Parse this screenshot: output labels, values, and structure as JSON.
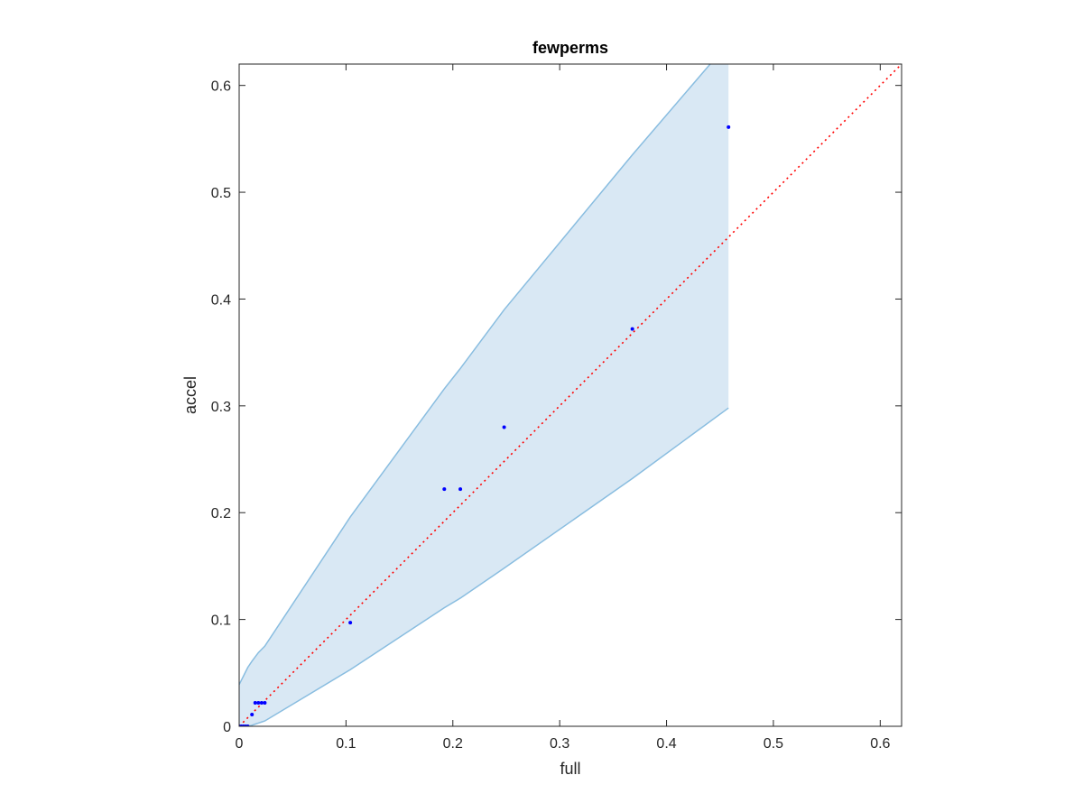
{
  "chart_data": {
    "type": "scatter",
    "title": "fewperms",
    "xlabel": "full",
    "ylabel": "accel",
    "xlim": [
      0,
      0.62
    ],
    "ylim": [
      0,
      0.62
    ],
    "xticks": [
      0,
      0.1,
      0.2,
      0.3,
      0.4,
      0.5,
      0.6
    ],
    "yticks": [
      0,
      0.1,
      0.2,
      0.3,
      0.4,
      0.5,
      0.6
    ],
    "xtick_labels": [
      "0",
      "0.1",
      "0.2",
      "0.3",
      "0.4",
      "0.5",
      "0.6"
    ],
    "ytick_labels": [
      "0",
      "0.1",
      "0.2",
      "0.3",
      "0.4",
      "0.5",
      "0.6"
    ],
    "grid": false,
    "points": {
      "color": "#0000ff",
      "x": [
        0.0,
        0.002,
        0.004,
        0.006,
        0.008,
        0.012,
        0.015,
        0.018,
        0.021,
        0.024,
        0.104,
        0.192,
        0.207,
        0.248,
        0.368,
        0.458
      ],
      "y": [
        0.0,
        0.0,
        0.0,
        0.0,
        0.0,
        0.011,
        0.022,
        0.022,
        0.022,
        0.022,
        0.097,
        0.222,
        0.222,
        0.28,
        0.372,
        0.561
      ]
    },
    "band": {
      "fill": "#d9e8f4",
      "edge": "#89bde0",
      "x": [
        0.0,
        0.002,
        0.004,
        0.006,
        0.008,
        0.012,
        0.015,
        0.018,
        0.021,
        0.024,
        0.104,
        0.192,
        0.207,
        0.248,
        0.368,
        0.458
      ],
      "upper": [
        0.039,
        0.043,
        0.047,
        0.051,
        0.055,
        0.061,
        0.065,
        0.069,
        0.072,
        0.075,
        0.196,
        0.316,
        0.335,
        0.39,
        0.535,
        0.64
      ],
      "lower": [
        0.0,
        0.0,
        0.0,
        0.0,
        0.0,
        0.001,
        0.002,
        0.003,
        0.004,
        0.005,
        0.053,
        0.111,
        0.12,
        0.148,
        0.232,
        0.298
      ]
    },
    "reference_line": {
      "style": "dotted",
      "color": "#ff0000",
      "from": [
        0,
        0
      ],
      "to": [
        0.62,
        0.62
      ]
    }
  }
}
